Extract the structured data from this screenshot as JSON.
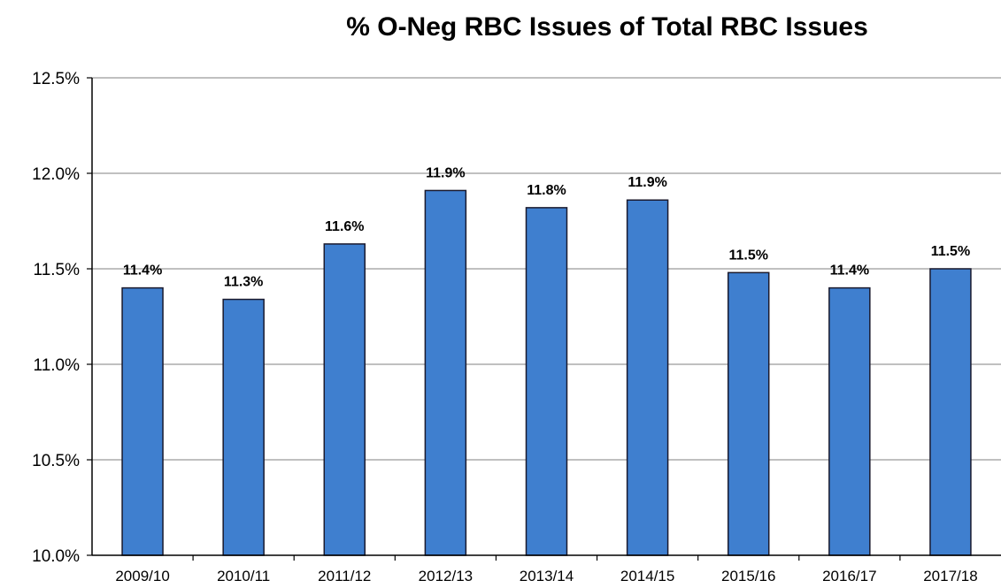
{
  "chart_data": {
    "type": "bar",
    "title": "% O-Neg RBC Issues of Total RBC Issues",
    "xlabel": "",
    "ylabel": "",
    "categories": [
      "2009/10",
      "2010/11",
      "2011/12",
      "2012/13",
      "2013/14",
      "2014/15",
      "2015/16",
      "2016/17",
      "2017/18"
    ],
    "values": [
      11.4,
      11.34,
      11.63,
      11.91,
      11.82,
      11.86,
      11.48,
      11.4,
      11.5
    ],
    "data_labels": [
      "11.4%",
      "11.3%",
      "11.6%",
      "11.9%",
      "11.8%",
      "11.9%",
      "11.5%",
      "11.4%",
      "11.5%"
    ],
    "y_ticks": [
      10.0,
      10.5,
      11.0,
      11.5,
      12.0,
      12.5
    ],
    "y_tick_labels": [
      "10.0%",
      "10.5%",
      "11.0%",
      "11.5%",
      "12.0%",
      "12.5%"
    ],
    "ylim": [
      10.0,
      12.5
    ],
    "grid": true,
    "legend": "none",
    "colors": {
      "bar_fill": "#3f7fcf",
      "bar_edge": "#1a1a2e",
      "gridline": "#9a9a9a",
      "axis": "#000000"
    }
  }
}
